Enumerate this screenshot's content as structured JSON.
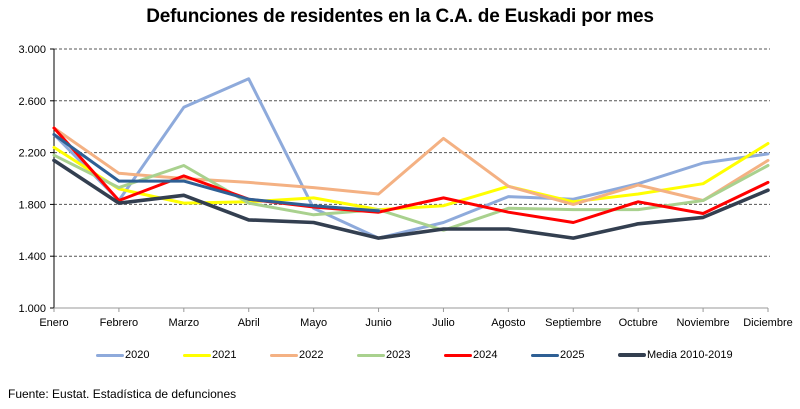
{
  "chart_data": {
    "type": "line",
    "title": "Defunciones de residentes en la C.A. de Euskadi por mes",
    "xlabel": "",
    "ylabel": "",
    "categories": [
      "Enero",
      "Febrero",
      "Marzo",
      "Abril",
      "Mayo",
      "Junio",
      "Julio",
      "Agosto",
      "Septiembre",
      "Octubre",
      "Noviembre",
      "Diciembre"
    ],
    "ylim": [
      1000,
      3000
    ],
    "yticks": [
      1000,
      1400,
      1800,
      2200,
      2600,
      3000
    ],
    "ytick_labels": [
      "1.000",
      "1.400",
      "1.800",
      "2.200",
      "2.600",
      "3.000"
    ],
    "grid": "horizontal dashed",
    "legend_position": "bottom",
    "series": [
      {
        "name": "2020",
        "color": "#8eaadb",
        "values": [
          2340,
          1830,
          2550,
          2770,
          1770,
          1540,
          1660,
          1860,
          1840,
          1960,
          2120,
          2190
        ]
      },
      {
        "name": "2021",
        "color": "#ffff00",
        "values": [
          2240,
          1920,
          1810,
          1820,
          1850,
          1760,
          1790,
          1940,
          1820,
          1880,
          1960,
          2270
        ]
      },
      {
        "name": "2022",
        "color": "#f4b183",
        "values": [
          2390,
          2040,
          2000,
          1970,
          1930,
          1880,
          2310,
          1940,
          1800,
          1950,
          1830,
          2140
        ]
      },
      {
        "name": "2023",
        "color": "#a9d18e",
        "values": [
          2180,
          1930,
          2100,
          1810,
          1720,
          1760,
          1600,
          1770,
          1760,
          1760,
          1830,
          2100
        ]
      },
      {
        "name": "2024",
        "color": "#ff0000",
        "values": [
          2390,
          1830,
          2020,
          1840,
          1780,
          1740,
          1850,
          1740,
          1660,
          1820,
          1730,
          1970
        ]
      },
      {
        "name": "2025",
        "color": "#2e5f94",
        "values": [
          2340,
          1980,
          1980,
          1840,
          1790,
          1750,
          null,
          null,
          null,
          null,
          null,
          null
        ]
      },
      {
        "name": "Media 2010-2019",
        "color": "#333f50",
        "values": [
          2140,
          1810,
          1870,
          1680,
          1660,
          1540,
          1610,
          1610,
          1540,
          1650,
          1700,
          1910
        ]
      }
    ]
  },
  "source": "Fuente: Eustat. Estadística de defunciones"
}
